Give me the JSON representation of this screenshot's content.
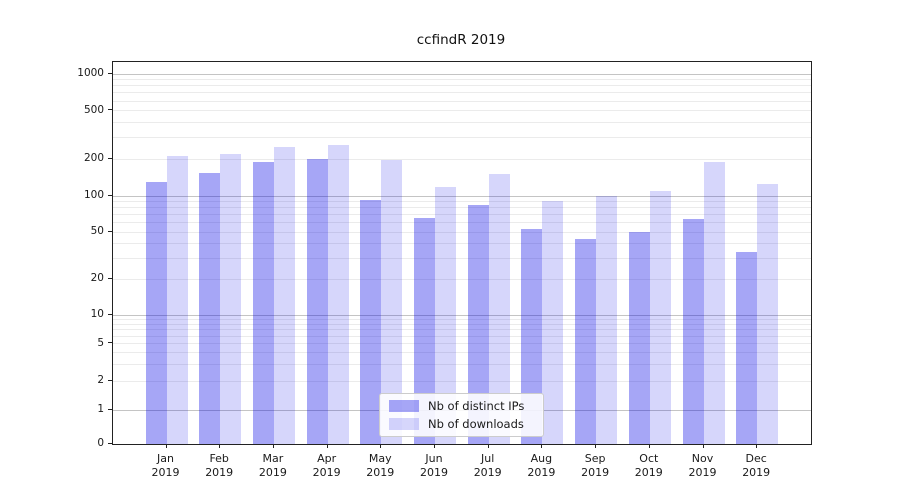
{
  "chart_data": {
    "type": "bar",
    "title": "ccfindR 2019",
    "categories": [
      "Jan 2019",
      "Feb 2019",
      "Mar 2019",
      "Apr 2019",
      "May 2019",
      "Jun 2019",
      "Jul 2019",
      "Aug 2019",
      "Sep 2019",
      "Oct 2019",
      "Nov 2019",
      "Dec 2019"
    ],
    "series": [
      {
        "name": "Nb of distinct IPs",
        "color": "rgba(0,0,230,0.35)",
        "values": [
          130,
          155,
          190,
          201,
          93,
          66,
          85,
          53,
          44,
          50,
          64,
          34
        ]
      },
      {
        "name": "Nb of downloads",
        "color": "rgba(0,0,230,0.16)",
        "values": [
          212,
          220,
          255,
          265,
          200,
          119,
          153,
          92,
          101,
          110,
          190,
          125
        ]
      }
    ],
    "xlabel": "",
    "ylabel": "",
    "yscale": "symlog",
    "yticks": [
      0,
      1,
      2,
      5,
      10,
      20,
      50,
      100,
      200,
      500,
      1000
    ],
    "ylim": [
      0,
      1300
    ],
    "grid": "horizontal, major and log-minor lines",
    "legend_position": "lower center",
    "legend_entries": [
      "Nb of distinct IPs",
      "Nb of downloads"
    ]
  },
  "colors": {
    "bar_dark": "rgba(0,0,230,0.35)",
    "bar_light": "rgba(0,0,230,0.16)",
    "major_grid": "#c4c4c4",
    "minor_grid": "#ebebeb",
    "axis": "#222222",
    "text": "#1a1a1a",
    "legend_border": "#cccccc"
  }
}
